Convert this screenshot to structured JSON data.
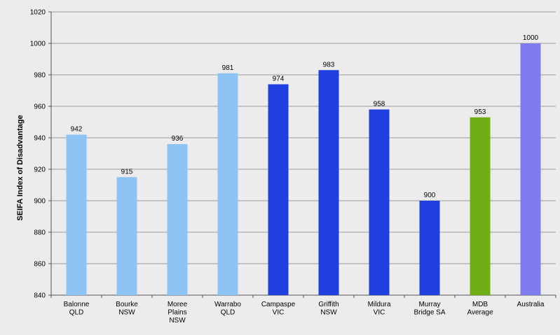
{
  "chart_data": {
    "type": "bar",
    "title": "",
    "xlabel": "",
    "ylabel": "SEIFA Index of Disadvantage",
    "ylim": [
      840,
      1020
    ],
    "yticks": [
      840,
      860,
      880,
      900,
      920,
      940,
      960,
      980,
      1000,
      1020
    ],
    "grid": true,
    "legend": "none",
    "categories": [
      [
        "Balonne",
        "QLD"
      ],
      [
        "Bourke",
        "NSW"
      ],
      [
        "Moree",
        "Plains",
        "NSW"
      ],
      [
        "Warrabo",
        "QLD"
      ],
      [
        "Campaspe",
        "VIC"
      ],
      [
        "Griffith",
        "NSW"
      ],
      [
        "Mildura",
        "VIC"
      ],
      [
        "Murray",
        "Bridge SA"
      ],
      [
        "MDB",
        "Average"
      ],
      [
        "Australia"
      ]
    ],
    "values": [
      942,
      915,
      936,
      981,
      974,
      983,
      958,
      900,
      953,
      1000
    ],
    "value_labels": [
      "942",
      "915",
      "936",
      "981",
      "974",
      "983",
      "958",
      "900",
      "953",
      "1000"
    ],
    "colors": [
      "#8ec3f5",
      "#8ec3f5",
      "#8ec3f5",
      "#8ec3f5",
      "#1f3fe0",
      "#1f3fe0",
      "#1f3fe0",
      "#1f3fe0",
      "#6fae14",
      "#7f7cf0"
    ]
  }
}
